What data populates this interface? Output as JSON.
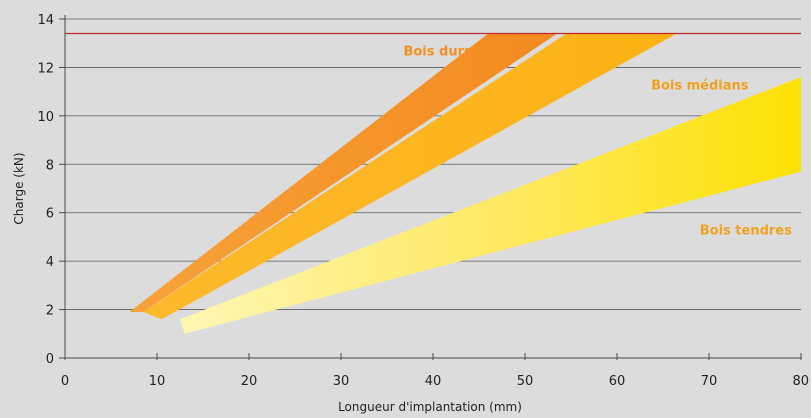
{
  "chart_data": {
    "type": "area",
    "title": "",
    "xlabel": "Longueur d'implantation (mm)",
    "ylabel": "Charge (kN)",
    "xlim": [
      0,
      80
    ],
    "ylim": [
      0,
      14
    ],
    "xticks": [
      0,
      10,
      20,
      30,
      40,
      50,
      60,
      70,
      80
    ],
    "yticks": [
      0,
      2,
      4,
      6,
      8,
      10,
      12,
      14
    ],
    "grid": "horizontal",
    "legend": "none",
    "reference_line": {
      "y": 13.4,
      "color": "#c0282d"
    },
    "series": [
      {
        "name": "Bois durs",
        "color": "#f39021",
        "label_at": {
          "x": 40.5,
          "y": 12.7
        },
        "upper": [
          {
            "x": 7,
            "y": 1.9
          },
          {
            "x": 46,
            "y": 13.4
          }
        ],
        "lower": [
          {
            "x": 8.5,
            "y": 1.9
          },
          {
            "x": 53.5,
            "y": 13.4
          }
        ]
      },
      {
        "name": "Bois médians",
        "color": "#fbb41a",
        "label_at": {
          "x": 69,
          "y": 11.3
        },
        "upper": [
          {
            "x": 8.5,
            "y": 1.9
          },
          {
            "x": 54.5,
            "y": 13.4
          }
        ],
        "lower": [
          {
            "x": 10.5,
            "y": 1.6
          },
          {
            "x": 66.5,
            "y": 13.4
          }
        ]
      },
      {
        "name": "Bois tendres",
        "color": "#fde84f",
        "label_at": {
          "x": 74,
          "y": 5.3
        },
        "upper": [
          {
            "x": 12.5,
            "y": 1.6
          },
          {
            "x": 80,
            "y": 11.6
          }
        ],
        "lower": [
          {
            "x": 13,
            "y": 1.0
          },
          {
            "x": 80,
            "y": 7.7
          }
        ]
      }
    ]
  }
}
